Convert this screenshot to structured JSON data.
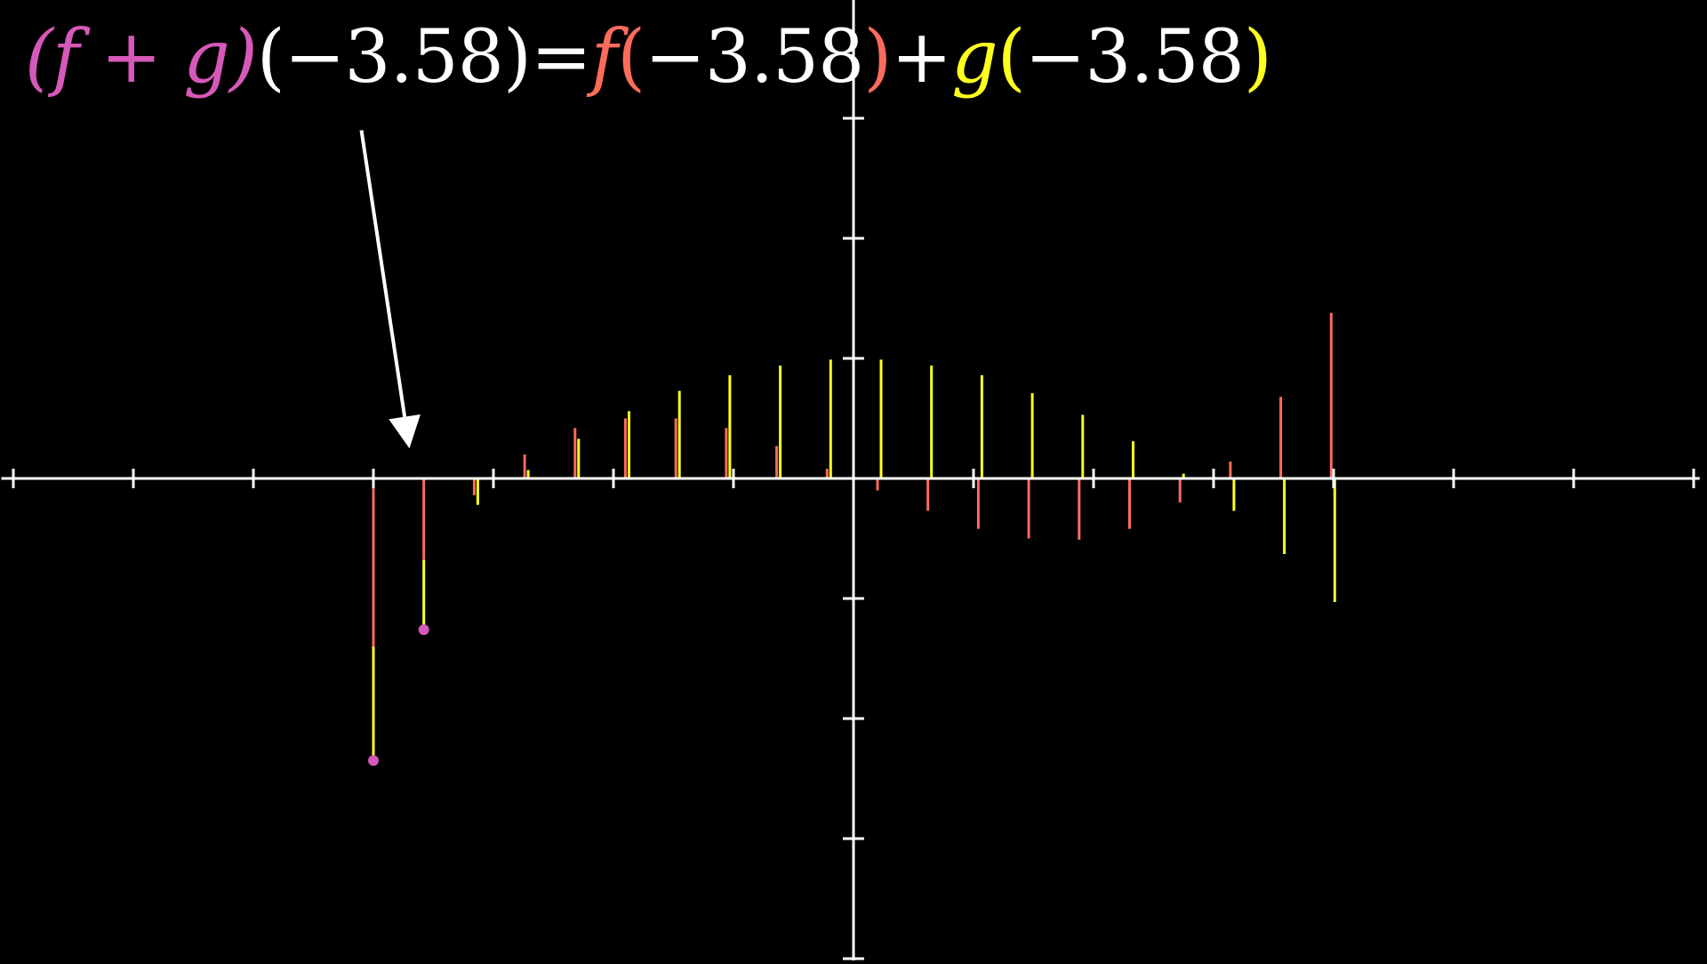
{
  "formula": {
    "sum_open": "(",
    "f1": "f",
    "plus1": " + ",
    "g1": "g",
    "sum_close": ")",
    "arg1": "(−3.58)",
    "equals": "=",
    "f2": "f",
    "f_open": "(",
    "arg2": "−3.58",
    "f_close": ")",
    "plus2": "+",
    "g2": "g",
    "g_open": "(",
    "arg3": "−3.58",
    "g_close": ")"
  },
  "colors": {
    "background": "#000000",
    "axes": "#ffffff",
    "f": "#fc6b5b",
    "g": "#ffff1f",
    "sum": "#d658b9",
    "arrow": "#ffffff"
  },
  "chart_data": {
    "type": "bar",
    "grid": false,
    "xlim": [
      -7.1,
      7.05
    ],
    "ylim": [
      -4,
      4
    ],
    "x_ticks": [
      -7,
      -6,
      -5,
      -4,
      -3,
      -2,
      -1,
      1,
      2,
      3,
      4,
      5,
      6,
      7
    ],
    "y_ticks": [
      -4,
      -3,
      -2,
      -1,
      1,
      2,
      3,
      4
    ],
    "series": [
      {
        "key": "f",
        "x": [
          -4.0,
          -3.58,
          -3.16,
          -2.74,
          -2.32,
          -1.9,
          -1.48,
          -1.06,
          -0.64,
          -0.22,
          0.2,
          0.62,
          1.04,
          1.46,
          1.88,
          2.3,
          2.72,
          3.14,
          3.56,
          3.98
        ],
        "values": [
          -1.4,
          -0.68,
          -0.14,
          0.2,
          0.42,
          0.5,
          0.5,
          0.42,
          0.27,
          0.08,
          -0.1,
          -0.27,
          -0.42,
          -0.5,
          -0.51,
          -0.42,
          -0.2,
          0.14,
          0.68,
          1.38
        ]
      },
      {
        "key": "g",
        "x": [
          -4.0,
          -3.58,
          -3.16,
          -2.74,
          -2.32,
          -1.9,
          -1.48,
          -1.06,
          -0.64,
          -0.22,
          0.2,
          0.62,
          1.04,
          1.46,
          1.88,
          2.3,
          2.72,
          3.14,
          3.56,
          3.98
        ],
        "values": [
          -0.95,
          -0.58,
          -0.22,
          0.07,
          0.33,
          0.56,
          0.73,
          0.86,
          0.94,
          0.99,
          0.99,
          0.94,
          0.86,
          0.71,
          0.53,
          0.31,
          0.04,
          -0.27,
          -0.63,
          -1.03
        ]
      }
    ],
    "sum_points": [
      {
        "x": -4.0,
        "y": -2.35
      },
      {
        "x": -3.58,
        "y": -1.26
      }
    ],
    "arrow": {
      "from": [
        -4.1,
        2.9
      ],
      "to": [
        -3.7,
        0.25
      ]
    }
  }
}
